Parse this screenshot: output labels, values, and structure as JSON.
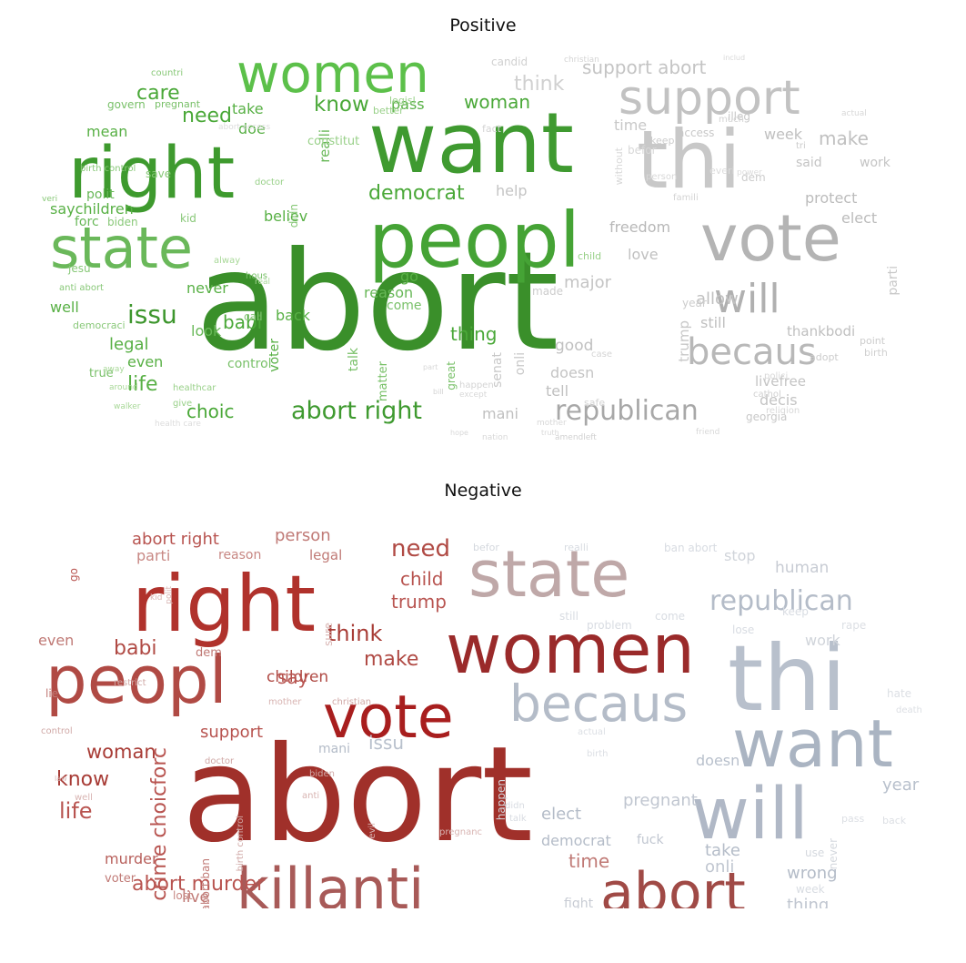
{
  "panels": [
    {
      "id": "positive",
      "title": "Positive",
      "words": [
        {
          "t": "abort",
          "c": "#3a8f2a"
        },
        {
          "t": "want",
          "c": "#3f9a30"
        },
        {
          "t": "peopl",
          "c": "#45a335"
        },
        {
          "t": "right",
          "c": "#3e9a2e"
        },
        {
          "t": "state",
          "c": "#6ab85a"
        },
        {
          "t": "women",
          "c": "#5cc04a"
        },
        {
          "t": "thi",
          "c": "#c8c8c8"
        },
        {
          "t": "vote",
          "c": "#b4b4b4"
        },
        {
          "t": "support",
          "c": "#c2c2c2"
        },
        {
          "t": "will",
          "c": "#b0b0b0"
        },
        {
          "t": "becaus",
          "c": "#b8b8b8"
        },
        {
          "t": "republican",
          "c": "#a8a8a8"
        },
        {
          "t": "abort right",
          "c": "#3f9a30"
        },
        {
          "t": "democrat",
          "c": "#4aa838"
        },
        {
          "t": "issu",
          "c": "#3d962d"
        },
        {
          "t": "know",
          "c": "#4aa838"
        },
        {
          "t": "care",
          "c": "#4aa838"
        },
        {
          "t": "need",
          "c": "#4aa838"
        },
        {
          "t": "woman",
          "c": "#4aa838"
        },
        {
          "t": "life",
          "c": "#58b045"
        },
        {
          "t": "choic",
          "c": "#4aa838"
        },
        {
          "t": "babi",
          "c": "#4aa838"
        },
        {
          "t": "thing",
          "c": "#4aa838"
        },
        {
          "t": "support abort",
          "c": "#c4c4c4"
        },
        {
          "t": "think",
          "c": "#d0d0d0"
        },
        {
          "t": "make",
          "c": "#c0c0c0"
        },
        {
          "t": "week",
          "c": "#c0c0c0"
        },
        {
          "t": "time",
          "c": "#c8c8c8"
        },
        {
          "t": "protect",
          "c": "#bcbcbc"
        },
        {
          "t": "elect",
          "c": "#bcbcbc"
        },
        {
          "t": "freedom",
          "c": "#b8b8b8"
        },
        {
          "t": "love",
          "c": "#c0c0c0"
        },
        {
          "t": "major",
          "c": "#c4c4c4"
        },
        {
          "t": "allow",
          "c": "#c0c0c0"
        },
        {
          "t": "good",
          "c": "#c0c0c0"
        },
        {
          "t": "doesn",
          "c": "#c4c4c4"
        },
        {
          "t": "tell",
          "c": "#c0c0c0"
        },
        {
          "t": "decis",
          "c": "#c4c4c4"
        },
        {
          "t": "mani",
          "c": "#c0c0c0"
        },
        {
          "t": "thankbodi",
          "c": "#c0c0c0"
        },
        {
          "t": "still",
          "c": "#c0c0c0"
        },
        {
          "t": "livefree",
          "c": "#c4c4c4"
        },
        {
          "t": "legal",
          "c": "#58b045"
        },
        {
          "t": "even",
          "c": "#58b045"
        },
        {
          "t": "well",
          "c": "#58b045"
        },
        {
          "t": "never",
          "c": "#58b045"
        },
        {
          "t": "back",
          "c": "#58b045"
        },
        {
          "t": "believ",
          "c": "#58b045"
        },
        {
          "t": "saychildren",
          "c": "#58b045"
        },
        {
          "t": "mean",
          "c": "#58b045"
        },
        {
          "t": "doe",
          "c": "#58b045"
        },
        {
          "t": "take",
          "c": "#58b045"
        },
        {
          "t": "pass",
          "c": "#58b045"
        },
        {
          "t": "help",
          "c": "#c4c4c4"
        },
        {
          "t": "said",
          "c": "#c4c4c4"
        },
        {
          "t": "work",
          "c": "#c4c4c4"
        },
        {
          "t": "look",
          "c": "#68b858"
        },
        {
          "t": "voter",
          "c": "#58b045"
        },
        {
          "t": "realli",
          "c": "#68b858"
        },
        {
          "t": "go",
          "c": "#58b045"
        },
        {
          "t": "reason",
          "c": "#68b858"
        },
        {
          "t": "forc",
          "c": "#68b858"
        },
        {
          "t": "polit",
          "c": "#68b858"
        },
        {
          "t": "true",
          "c": "#78c068"
        },
        {
          "t": "control",
          "c": "#78c068"
        },
        {
          "t": "come",
          "c": "#78c068"
        },
        {
          "t": "talk",
          "c": "#78c068"
        },
        {
          "t": "matter",
          "c": "#78c068"
        },
        {
          "t": "great",
          "c": "#78c068"
        },
        {
          "t": "senat",
          "c": "#c8c8c8"
        },
        {
          "t": "onli",
          "c": "#c8c8c8"
        },
        {
          "t": "georgia",
          "c": "#c8c8c8"
        },
        {
          "t": "trump",
          "c": "#c8c8c8"
        },
        {
          "t": "year",
          "c": "#cccccc"
        },
        {
          "t": "parti",
          "c": "#c8c8c8"
        },
        {
          "t": "made",
          "c": "#cccccc"
        },
        {
          "t": "candid",
          "c": "#d0d0d0"
        },
        {
          "t": "keep",
          "c": "#cccccc"
        },
        {
          "t": "access",
          "c": "#c8c8c8"
        },
        {
          "t": "illeg",
          "c": "#c8c8c8"
        },
        {
          "t": "dem",
          "c": "#cccccc"
        },
        {
          "t": "point",
          "c": "#cccccc"
        },
        {
          "t": "birth",
          "c": "#d0d0d0"
        },
        {
          "t": "adopt",
          "c": "#cccccc"
        },
        {
          "t": "cathol",
          "c": "#d0d0d0"
        },
        {
          "t": "govern",
          "c": "#78c068"
        },
        {
          "t": "pregnant",
          "c": "#78c068"
        },
        {
          "t": "countri",
          "c": "#88c878"
        },
        {
          "t": "birth control",
          "c": "#88c878"
        },
        {
          "t": "biden",
          "c": "#88c878"
        },
        {
          "t": "save",
          "c": "#88c878"
        },
        {
          "t": "kid",
          "c": "#88c878"
        },
        {
          "t": "veri",
          "c": "#88c878"
        },
        {
          "t": "jesu",
          "c": "#88c878"
        },
        {
          "t": "anti abort",
          "c": "#88c878"
        },
        {
          "t": "democraci",
          "c": "#88c878"
        },
        {
          "t": "healthcar",
          "c": "#98d088"
        },
        {
          "t": "give",
          "c": "#98d088"
        },
        {
          "t": "hous",
          "c": "#78c068"
        },
        {
          "t": "call",
          "c": "#88c878"
        },
        {
          "t": "didn",
          "c": "#88c878"
        },
        {
          "t": "constitut",
          "c": "#98d088"
        },
        {
          "t": "better",
          "c": "#98d088"
        },
        {
          "t": "legisl",
          "c": "#98d088"
        },
        {
          "t": "child",
          "c": "#98d088"
        },
        {
          "t": "famili",
          "c": "#d4d4d4"
        },
        {
          "t": "safe",
          "c": "#d4d4d4"
        },
        {
          "t": "case",
          "c": "#d4d4d4"
        },
        {
          "t": "happen",
          "c": "#d4d4d4"
        },
        {
          "t": "fact",
          "c": "#d4d4d4"
        },
        {
          "t": "christian",
          "c": "#d4d4d4"
        },
        {
          "t": "befor",
          "c": "#d8d8d8"
        },
        {
          "t": "tri",
          "c": "#cccccc"
        },
        {
          "t": "much",
          "c": "#d4d4d4"
        },
        {
          "t": "actual",
          "c": "#d8d8d8"
        },
        {
          "t": "polici",
          "c": "#d8d8d8"
        },
        {
          "t": "religion",
          "c": "#d8d8d8"
        },
        {
          "t": "friend",
          "c": "#d8d8d8"
        },
        {
          "t": "amendleft",
          "c": "#d0d0d0"
        },
        {
          "t": "nation",
          "c": "#d8d8d8"
        },
        {
          "t": "mother",
          "c": "#d8d8d8"
        },
        {
          "t": "except",
          "c": "#d8d8d8"
        },
        {
          "t": "bill",
          "c": "#d4d4d4"
        },
        {
          "t": "part",
          "c": "#d8d8d8"
        },
        {
          "t": "hope",
          "c": "#d8d8d8"
        },
        {
          "t": "truth",
          "c": "#d8d8d8"
        },
        {
          "t": "includ",
          "c": "#d8d8d8"
        },
        {
          "t": "without",
          "c": "#d8d8d8"
        },
        {
          "t": "everi",
          "c": "#dcdcdc"
        },
        {
          "t": "person",
          "c": "#d8d8d8"
        },
        {
          "t": "power",
          "c": "#dcdcdc"
        },
        {
          "t": "health care",
          "c": "#dcdcdc"
        },
        {
          "t": "abort access",
          "c": "#dcdcdc"
        },
        {
          "t": "doctor",
          "c": "#98d088"
        },
        {
          "t": "alway",
          "c": "#a8d898"
        },
        {
          "t": "real",
          "c": "#a8d898"
        },
        {
          "t": "walker",
          "c": "#a8d898"
        },
        {
          "t": "around",
          "c": "#a8d898"
        },
        {
          "t": "away",
          "c": "#a8d898"
        },
        {
          "t": "must",
          "c": "#a8d898"
        },
        {
          "t": "start",
          "c": "#a8d898"
        }
      ]
    },
    {
      "id": "negative",
      "title": "Negative",
      "words": [
        {
          "t": "abort",
          "c": "#a0302a"
        },
        {
          "t": "right",
          "c": "#b0322c"
        },
        {
          "t": "women",
          "c": "#9a2a2a"
        },
        {
          "t": "vote",
          "c": "#a81e1e"
        },
        {
          "t": "peopl",
          "c": "#b04a44"
        },
        {
          "t": "state",
          "c": "#bfa8a8"
        },
        {
          "t": "thi",
          "c": "#b8c0cc"
        },
        {
          "t": "want",
          "c": "#aab4c2"
        },
        {
          "t": "will",
          "c": "#b0b8c6"
        },
        {
          "t": "becaus",
          "c": "#b4bcc8"
        },
        {
          "t": "killanti",
          "c": "#a85a58"
        },
        {
          "t": "abort",
          "c": "#a04a46"
        },
        {
          "t": "republican",
          "c": "#b4bcc8"
        },
        {
          "t": "need",
          "c": "#b04a44"
        },
        {
          "t": "child",
          "c": "#b85450"
        },
        {
          "t": "trump",
          "c": "#b85450"
        },
        {
          "t": "think",
          "c": "#a83c36"
        },
        {
          "t": "make",
          "c": "#b04a44"
        },
        {
          "t": "children",
          "c": "#b04a44"
        },
        {
          "t": "babi",
          "c": "#b04a44"
        },
        {
          "t": "woman",
          "c": "#a83c36"
        },
        {
          "t": "know",
          "c": "#a83c36"
        },
        {
          "t": "life",
          "c": "#b85450"
        },
        {
          "t": "support",
          "c": "#b85450"
        },
        {
          "t": "abort right",
          "c": "#b85450"
        },
        {
          "t": "person",
          "c": "#c07a76"
        },
        {
          "t": "issu",
          "c": "#b8c0cc"
        },
        {
          "t": "mani",
          "c": "#b4bcc8"
        },
        {
          "t": "crime choicforc",
          "c": "#b85450"
        },
        {
          "t": "abort murder",
          "c": "#b85450"
        },
        {
          "t": "murder",
          "c": "#b8605c"
        },
        {
          "t": "live",
          "c": "#c07a76"
        },
        {
          "t": "time",
          "c": "#c07a76"
        },
        {
          "t": "elect",
          "c": "#b4bcc8"
        },
        {
          "t": "democrat",
          "c": "#b4bcc8"
        },
        {
          "t": "pregnant",
          "c": "#c0c6d0"
        },
        {
          "t": "doesn",
          "c": "#b8c0cc"
        },
        {
          "t": "onli",
          "c": "#c0c6d0"
        },
        {
          "t": "year",
          "c": "#b8c0cc"
        },
        {
          "t": "take",
          "c": "#b4bcc8"
        },
        {
          "t": "wrong",
          "c": "#b4bcc8"
        },
        {
          "t": "thing",
          "c": "#c0c6d0"
        },
        {
          "t": "human",
          "c": "#c8ccd4"
        },
        {
          "t": "stop",
          "c": "#d0d4da"
        },
        {
          "t": "even",
          "c": "#c07a76"
        },
        {
          "t": "parti",
          "c": "#c88884"
        },
        {
          "t": "reason",
          "c": "#c88884"
        },
        {
          "t": "legal",
          "c": "#c07a76"
        },
        {
          "t": "say",
          "c": "#b85450"
        },
        {
          "t": "go",
          "c": "#b85450"
        },
        {
          "t": "lie",
          "c": "#c07a76"
        },
        {
          "t": "dem",
          "c": "#c07a76"
        },
        {
          "t": "voter",
          "c": "#c07a76"
        },
        {
          "t": "abort ban",
          "c": "#c07a76"
        },
        {
          "t": "fight",
          "c": "#c8ccd4"
        },
        {
          "t": "lost",
          "c": "#c88884"
        },
        {
          "t": "work",
          "c": "#d0d4da"
        },
        {
          "t": "fuck",
          "c": "#c0c6d0"
        },
        {
          "t": "befor",
          "c": "#d4d8de"
        },
        {
          "t": "realli",
          "c": "#d8dce2"
        },
        {
          "t": "ban abort",
          "c": "#d8dce2"
        },
        {
          "t": "still",
          "c": "#d8dce2"
        },
        {
          "t": "problem",
          "c": "#d8dce2"
        },
        {
          "t": "come",
          "c": "#d8dce2"
        },
        {
          "t": "lose",
          "c": "#d8dce2"
        },
        {
          "t": "keep",
          "c": "#d8dce2"
        },
        {
          "t": "happen",
          "c": "#d4d8de"
        },
        {
          "t": "never",
          "c": "#d4d8de"
        },
        {
          "t": "hate",
          "c": "#dcdfe4"
        },
        {
          "t": "death",
          "c": "#dcdfe4"
        },
        {
          "t": "use",
          "c": "#d4d8de"
        },
        {
          "t": "week",
          "c": "#d8dce2"
        },
        {
          "t": "back",
          "c": "#dcdfe4"
        },
        {
          "t": "said",
          "c": "#dcdfe4"
        },
        {
          "t": "control",
          "c": "#d0a8a6"
        },
        {
          "t": "restrict",
          "c": "#d0a8a6"
        },
        {
          "t": "birth control",
          "c": "#d0a8a6"
        },
        {
          "t": "christian",
          "c": "#d0a8a6"
        },
        {
          "t": "biden",
          "c": "#d0a8a6"
        },
        {
          "t": "doctor",
          "c": "#d0a8a6"
        },
        {
          "t": "mother",
          "c": "#d8b4b2"
        },
        {
          "t": "well",
          "c": "#d8b4b2"
        },
        {
          "t": "anti",
          "c": "#d8b4b2"
        },
        {
          "t": "evil",
          "c": "#d8b4b2"
        },
        {
          "t": "pregnanc",
          "c": "#d8b4b2"
        },
        {
          "t": "actual",
          "c": "#dcdfe4"
        },
        {
          "t": "birth",
          "c": "#dcdfe4"
        },
        {
          "t": "law",
          "c": "#d8b4b2"
        },
        {
          "t": "kid",
          "c": "#d8b4b2"
        },
        {
          "t": "polit",
          "c": "#d8b4b2"
        },
        {
          "t": "didn",
          "c": "#d8dce2"
        },
        {
          "t": "talk",
          "c": "#d8dce2"
        },
        {
          "t": "sure",
          "c": "#d8b4b2"
        },
        {
          "t": "rape",
          "c": "#dcdfe4"
        },
        {
          "t": "pass",
          "c": "#dcdfe4"
        }
      ]
    }
  ]
}
